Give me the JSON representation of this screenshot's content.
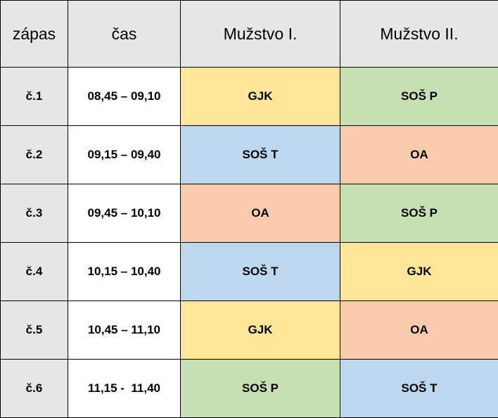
{
  "headers": [
    "zápas",
    "čas",
    "Mužstvo I.",
    "Mužstvo II."
  ],
  "team_colors": {
    "GJK": "#ffe699",
    "SOŠ P": "#c6e0b4",
    "SOŠ T": "#bdd7ee",
    "OA": "#f8cbad"
  },
  "rows": [
    {
      "match": "č.1",
      "time": "08,45 – 09,10",
      "team1": "GJK",
      "team2": "SOŠ P"
    },
    {
      "match": "č.2",
      "time": "09,15 – 09,40",
      "team1": "SOŠ T",
      "team2": "OA"
    },
    {
      "match": "č.3",
      "time": "09,45 – 10,10",
      "team1": "OA",
      "team2": "SOŠ P"
    },
    {
      "match": "č.4",
      "time": "10,15 – 10,40",
      "team1": "SOŠ T",
      "team2": "GJK"
    },
    {
      "match": "č.5",
      "time": "10,45 – 11,10",
      "team1": "GJK",
      "team2": "OA"
    },
    {
      "match": "č.6",
      "time": "11,15 -  11,40",
      "team1": "SOŠ P",
      "team2": "SOŠ T"
    }
  ]
}
